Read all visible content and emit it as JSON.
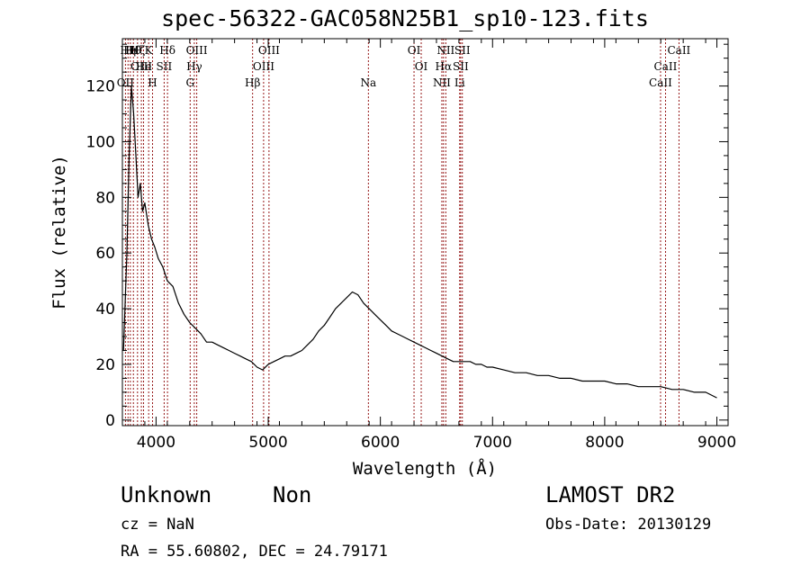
{
  "title": "spec-56322-GAC058N25B1_sp10-123.fits",
  "info": {
    "object_class": "Unknown",
    "object_subclass": "Non",
    "survey": "LAMOST DR2",
    "cz": "cz = NaN",
    "obs_date": "Obs-Date: 20130129",
    "radec": "RA =  55.60802, DEC =  24.79171"
  },
  "chart_data": {
    "type": "line",
    "title": "spec-56322-GAC058N25B1_sp10-123.fits",
    "xlabel": "Wavelength (Å)",
    "ylabel": "Flux (relative)",
    "xlim": [
      3700,
      9100
    ],
    "ylim": [
      -2,
      137
    ],
    "xticks": [
      4000,
      5000,
      6000,
      7000,
      8000,
      9000
    ],
    "yticks": [
      0,
      20,
      40,
      60,
      80,
      100,
      120
    ],
    "grid": false,
    "line_color": "#000000",
    "marker_color": "#8b0000",
    "series": [
      {
        "x": [
          3710,
          3740,
          3760,
          3780,
          3800,
          3820,
          3840,
          3860,
          3880,
          3900,
          3930,
          3960,
          3990,
          4020,
          4060,
          4100,
          4150,
          4200,
          4250,
          4300,
          4350,
          4400,
          4450,
          4500,
          4550,
          4600,
          4650,
          4700,
          4750,
          4800,
          4850,
          4900,
          4950,
          5000,
          5050,
          5100,
          5150,
          5200,
          5250,
          5300,
          5350,
          5400,
          5450,
          5500,
          5550,
          5600,
          5650,
          5700,
          5750,
          5800,
          5850,
          5900,
          5950,
          6000,
          6050,
          6100,
          6150,
          6200,
          6250,
          6300,
          6350,
          6400,
          6450,
          6500,
          6550,
          6600,
          6650,
          6700,
          6750,
          6800,
          6850,
          6900,
          6950,
          7000,
          7100,
          7200,
          7300,
          7400,
          7500,
          7600,
          7700,
          7800,
          7900,
          8000,
          8100,
          8200,
          8300,
          8400,
          8500,
          8600,
          8700,
          8800,
          8900,
          9000
        ],
        "y": [
          25,
          60,
          95,
          120,
          110,
          95,
          80,
          85,
          75,
          78,
          70,
          65,
          62,
          58,
          55,
          50,
          48,
          42,
          38,
          35,
          33,
          31,
          28,
          28,
          27,
          26,
          25,
          24,
          23,
          22,
          21,
          19,
          18,
          20,
          21,
          22,
          23,
          23,
          24,
          25,
          27,
          29,
          32,
          34,
          37,
          40,
          42,
          44,
          46,
          45,
          42,
          40,
          38,
          36,
          34,
          32,
          31,
          30,
          29,
          28,
          27,
          26,
          25,
          24,
          23,
          22,
          21,
          21,
          21,
          21,
          20,
          20,
          19,
          19,
          18,
          17,
          17,
          16,
          16,
          15,
          15,
          14,
          14,
          14,
          13,
          13,
          12,
          12,
          12,
          11,
          11,
          10,
          10,
          8
        ]
      }
    ],
    "lines": [
      {
        "w": 3727,
        "labels": [
          [
            "OII",
            3
          ]
        ]
      },
      {
        "w": 3750,
        "labels": [
          [
            "Hη",
            1
          ]
        ]
      },
      {
        "w": 3771,
        "labels": [
          [
            "Hι",
            1
          ]
        ]
      },
      {
        "w": 3798,
        "labels": [
          [
            "Hθ",
            1
          ]
        ]
      },
      {
        "w": 3835,
        "labels": [
          [
            "Hζ",
            1
          ]
        ]
      },
      {
        "w": 3869,
        "labels": [
          [
            "OIII",
            2
          ]
        ]
      },
      {
        "w": 3889,
        "labels": [
          [
            "He",
            2
          ]
        ]
      },
      {
        "w": 3934,
        "labels": [
          [
            "K",
            1
          ]
        ]
      },
      {
        "w": 3969,
        "labels": [
          [
            "H",
            3
          ]
        ]
      },
      {
        "w": 4072,
        "labels": [
          [
            "SII",
            2
          ]
        ]
      },
      {
        "w": 4102,
        "labels": [
          [
            "Hδ",
            1
          ]
        ]
      },
      {
        "w": 4304,
        "labels": [
          [
            "G",
            3
          ]
        ]
      },
      {
        "w": 4341,
        "labels": [
          [
            "Hγ",
            2
          ]
        ]
      },
      {
        "w": 4363,
        "labels": [
          [
            "OIII",
            1
          ]
        ]
      },
      {
        "w": 4861,
        "labels": [
          [
            "Hβ",
            3
          ]
        ]
      },
      {
        "w": 4959,
        "labels": [
          [
            "OIII",
            2
          ]
        ]
      },
      {
        "w": 5007,
        "labels": [
          [
            "OIII",
            1
          ]
        ]
      },
      {
        "w": 5893,
        "labels": [
          [
            "Na",
            3
          ]
        ]
      },
      {
        "w": 6300,
        "labels": [
          [
            "OI",
            1
          ]
        ]
      },
      {
        "w": 6364,
        "labels": [
          [
            "OI",
            2
          ]
        ]
      },
      {
        "w": 6548,
        "labels": [
          [
            "NII",
            3
          ]
        ]
      },
      {
        "w": 6563,
        "labels": [
          [
            "Hα",
            2
          ]
        ]
      },
      {
        "w": 6583,
        "labels": [
          [
            "NII",
            1
          ]
        ]
      },
      {
        "w": 6707,
        "labels": [
          [
            "Li",
            3
          ]
        ]
      },
      {
        "w": 6716,
        "labels": [
          [
            "SII",
            2
          ]
        ]
      },
      {
        "w": 6731,
        "labels": [
          [
            "SII",
            1
          ]
        ]
      },
      {
        "w": 8498,
        "labels": [
          [
            "CaII",
            3
          ]
        ]
      },
      {
        "w": 8542,
        "labels": [
          [
            "CaII",
            2
          ]
        ]
      },
      {
        "w": 8662,
        "labels": [
          [
            "CaII",
            1
          ]
        ]
      }
    ]
  }
}
